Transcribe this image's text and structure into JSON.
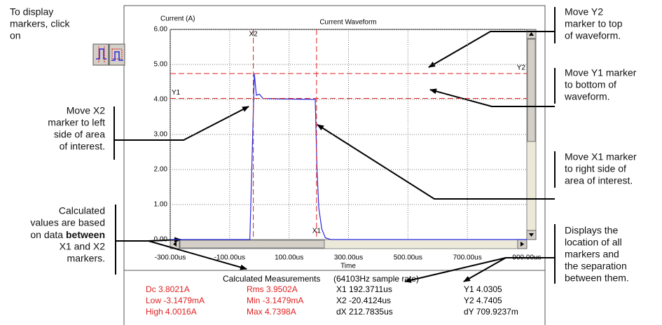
{
  "instruction": {
    "lines": [
      "To display",
      "markers, click",
      "on"
    ]
  },
  "left_annotations": [
    {
      "lines": [
        "Move X2",
        "marker to left",
        "side of area",
        "of interest."
      ]
    },
    {
      "lines": [
        "Calculated",
        "values are based",
        "on data ",
        "X1 and X2",
        "markers."
      ],
      "bold": "between"
    }
  ],
  "right_annotations": [
    {
      "lines": [
        "Move Y2",
        "marker to top",
        "of waveform."
      ]
    },
    {
      "lines": [
        "Move Y1 marker",
        "to bottom of",
        "waveform."
      ]
    },
    {
      "lines": [
        "Move X1 marker",
        "to right side of",
        "area of interest."
      ]
    },
    {
      "lines": [
        "Displays the",
        "location of all",
        "markers and",
        "the separation",
        "between them."
      ]
    }
  ],
  "chart_data": {
    "type": "line",
    "title": "Current Waveform",
    "y_label": "Current (A)",
    "x_label": "Time",
    "x": [
      -300,
      -32,
      -24,
      -17,
      -10,
      0,
      12,
      60,
      188,
      194,
      200,
      210,
      222,
      240,
      900
    ],
    "values": [
      0,
      0,
      2.5,
      4.74,
      4.12,
      4.15,
      4.03,
      4.02,
      4.0,
      2.0,
      0.9,
      0.3,
      0.05,
      0,
      0
    ],
    "color": "#2a2ae0",
    "xlim": [
      -300,
      900
    ],
    "xticks": [
      {
        "value": -300,
        "label": "-300.00us"
      },
      {
        "value": -100,
        "label": "-100.00us"
      },
      {
        "value": 100,
        "label": "100.00us"
      },
      {
        "value": 300,
        "label": "300.00us"
      },
      {
        "value": 500,
        "label": "500.00us"
      },
      {
        "value": 700,
        "label": "700.00us"
      },
      {
        "value": 900,
        "label": "900.00us"
      }
    ],
    "ylim": [
      0,
      6
    ],
    "yticks": [
      {
        "value": 0,
        "label": "0.00"
      },
      {
        "value": 1,
        "label": "1.00"
      },
      {
        "value": 2,
        "label": "2.00"
      },
      {
        "value": 3,
        "label": "3.00"
      },
      {
        "value": 4,
        "label": "4.00"
      },
      {
        "value": 5,
        "label": "5.00"
      },
      {
        "value": 6,
        "label": "6.00"
      }
    ],
    "grid": true,
    "x_markers": [
      {
        "label": "X2",
        "x": -20.4124
      },
      {
        "label": "X1",
        "x": 192.3711
      }
    ],
    "y_markers": [
      {
        "label": "Y1",
        "y": 4.0305
      },
      {
        "label": "Y2",
        "y": 4.7405
      }
    ]
  },
  "measurements": {
    "title": "Calculated Measurements",
    "rate": "(64103Hz sample rate)",
    "columns": [
      {
        "color": "#e02020",
        "items": [
          "Dc  3.8021A",
          "Low  -3.1479mA",
          "High  4.0016A"
        ]
      },
      {
        "color": "#e02020",
        "items": [
          "Rms  3.9502A",
          "Min  -3.1479mA",
          "Max  4.7398A"
        ]
      },
      {
        "color": "#000000",
        "items": [
          "X1 192.3711us",
          "X2 -20.4124us",
          "dX 212.7835us"
        ]
      },
      {
        "color": "#000000",
        "items": [
          "Y1   4.0305",
          "Y2   4.7405",
          "dY 709.9237m"
        ]
      }
    ]
  }
}
